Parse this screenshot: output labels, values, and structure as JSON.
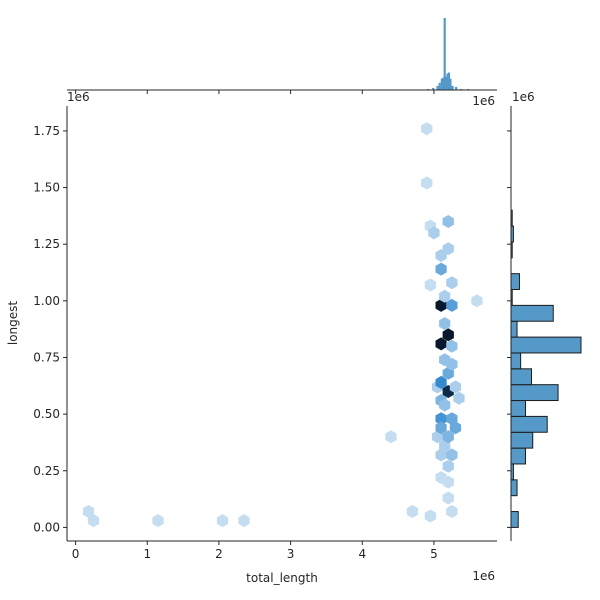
{
  "chart_data": {
    "type": "hexbin",
    "xlabel": "total_length",
    "ylabel": "longest",
    "x_offset_label": "1e6",
    "y_offset_label": "1e6",
    "xlim": [
      -0.12,
      5.88
    ],
    "ylim": [
      -0.06,
      1.86
    ],
    "x_ticks": [
      0,
      1,
      2,
      3,
      4,
      5
    ],
    "x_tick_labels": [
      "0",
      "1",
      "2",
      "3",
      "4",
      "5"
    ],
    "y_ticks": [
      0.0,
      0.25,
      0.5,
      0.75,
      1.0,
      1.25,
      1.5,
      1.75
    ],
    "y_tick_labels": [
      "0.00",
      "0.25",
      "0.50",
      "0.75",
      "1.00",
      "1.25",
      "1.50",
      "1.75"
    ],
    "grid": false,
    "colors": {
      "hex_max": "#08192e",
      "bar_fill": "#5499c7",
      "bar_edge": "#1b1b1b",
      "axis": "#262626"
    },
    "hexbin": [
      {
        "x": 0.18,
        "y": 0.07,
        "count": 1
      },
      {
        "x": 0.25,
        "y": 0.03,
        "count": 1
      },
      {
        "x": 1.15,
        "y": 0.03,
        "count": 1
      },
      {
        "x": 2.05,
        "y": 0.03,
        "count": 1
      },
      {
        "x": 2.35,
        "y": 0.03,
        "count": 1
      },
      {
        "x": 4.4,
        "y": 0.4,
        "count": 1
      },
      {
        "x": 4.7,
        "y": 0.07,
        "count": 1
      },
      {
        "x": 4.9,
        "y": 1.76,
        "count": 1
      },
      {
        "x": 4.9,
        "y": 1.52,
        "count": 1
      },
      {
        "x": 4.95,
        "y": 1.33,
        "count": 1
      },
      {
        "x": 4.95,
        "y": 1.07,
        "count": 1
      },
      {
        "x": 4.95,
        "y": 0.05,
        "count": 1
      },
      {
        "x": 5.0,
        "y": 1.3,
        "count": 2
      },
      {
        "x": 5.05,
        "y": 0.62,
        "count": 2
      },
      {
        "x": 5.05,
        "y": 0.4,
        "count": 2
      },
      {
        "x": 5.1,
        "y": 1.2,
        "count": 2
      },
      {
        "x": 5.1,
        "y": 1.14,
        "count": 5
      },
      {
        "x": 5.1,
        "y": 0.98,
        "count": 20
      },
      {
        "x": 5.1,
        "y": 0.81,
        "count": 20
      },
      {
        "x": 5.1,
        "y": 0.64,
        "count": 8
      },
      {
        "x": 5.1,
        "y": 0.56,
        "count": 4
      },
      {
        "x": 5.1,
        "y": 0.48,
        "count": 7
      },
      {
        "x": 5.1,
        "y": 0.44,
        "count": 5
      },
      {
        "x": 5.1,
        "y": 0.32,
        "count": 2
      },
      {
        "x": 5.1,
        "y": 0.22,
        "count": 1
      },
      {
        "x": 5.15,
        "y": 1.02,
        "count": 2
      },
      {
        "x": 5.15,
        "y": 0.9,
        "count": 3
      },
      {
        "x": 5.15,
        "y": 0.74,
        "count": 3
      },
      {
        "x": 5.15,
        "y": 0.54,
        "count": 3
      },
      {
        "x": 5.15,
        "y": 0.36,
        "count": 2
      },
      {
        "x": 5.2,
        "y": 1.35,
        "count": 3
      },
      {
        "x": 5.2,
        "y": 1.23,
        "count": 2
      },
      {
        "x": 5.2,
        "y": 0.85,
        "count": 20
      },
      {
        "x": 5.2,
        "y": 0.68,
        "count": 5
      },
      {
        "x": 5.2,
        "y": 0.6,
        "count": 18
      },
      {
        "x": 5.2,
        "y": 0.4,
        "count": 4
      },
      {
        "x": 5.2,
        "y": 0.27,
        "count": 2
      },
      {
        "x": 5.2,
        "y": 0.2,
        "count": 1
      },
      {
        "x": 5.2,
        "y": 0.13,
        "count": 1
      },
      {
        "x": 5.25,
        "y": 1.08,
        "count": 2
      },
      {
        "x": 5.25,
        "y": 0.98,
        "count": 6
      },
      {
        "x": 5.25,
        "y": 0.8,
        "count": 3
      },
      {
        "x": 5.25,
        "y": 0.72,
        "count": 3
      },
      {
        "x": 5.25,
        "y": 0.48,
        "count": 5
      },
      {
        "x": 5.25,
        "y": 0.32,
        "count": 3
      },
      {
        "x": 5.25,
        "y": 0.07,
        "count": 1
      },
      {
        "x": 5.3,
        "y": 0.62,
        "count": 2
      },
      {
        "x": 5.3,
        "y": 0.44,
        "count": 5
      },
      {
        "x": 5.35,
        "y": 0.57,
        "count": 2
      },
      {
        "x": 5.6,
        "y": 1.0,
        "count": 1
      }
    ],
    "x_marginal_histogram": {
      "bins": [
        {
          "x": 4.92,
          "count": 1
        },
        {
          "x": 4.99,
          "count": 2
        },
        {
          "x": 5.05,
          "count": 4
        },
        {
          "x": 5.08,
          "count": 7
        },
        {
          "x": 5.11,
          "count": 11
        },
        {
          "x": 5.13,
          "count": 12
        },
        {
          "x": 5.15,
          "count": 70
        },
        {
          "x": 5.17,
          "count": 13
        },
        {
          "x": 5.19,
          "count": 16
        },
        {
          "x": 5.21,
          "count": 17
        },
        {
          "x": 5.23,
          "count": 11
        },
        {
          "x": 5.26,
          "count": 4
        },
        {
          "x": 5.31,
          "count": 3
        },
        {
          "x": 5.38,
          "count": 1
        },
        {
          "x": 5.48,
          "count": 1
        }
      ]
    },
    "y_marginal_histogram": {
      "bin_width": 0.07,
      "bins": [
        {
          "y": 0.035,
          "count": 6
        },
        {
          "y": 0.105,
          "count": 0
        },
        {
          "y": 0.175,
          "count": 5
        },
        {
          "y": 0.245,
          "count": 2
        },
        {
          "y": 0.315,
          "count": 12
        },
        {
          "y": 0.385,
          "count": 18
        },
        {
          "y": 0.455,
          "count": 30
        },
        {
          "y": 0.525,
          "count": 12
        },
        {
          "y": 0.595,
          "count": 39
        },
        {
          "y": 0.665,
          "count": 17
        },
        {
          "y": 0.735,
          "count": 8
        },
        {
          "y": 0.805,
          "count": 58
        },
        {
          "y": 0.875,
          "count": 5
        },
        {
          "y": 0.945,
          "count": 35
        },
        {
          "y": 1.015,
          "count": 1
        },
        {
          "y": 1.085,
          "count": 7
        },
        {
          "y": 1.155,
          "count": 0
        },
        {
          "y": 1.225,
          "count": 1
        },
        {
          "y": 1.295,
          "count": 2
        },
        {
          "y": 1.365,
          "count": 1
        }
      ]
    }
  }
}
